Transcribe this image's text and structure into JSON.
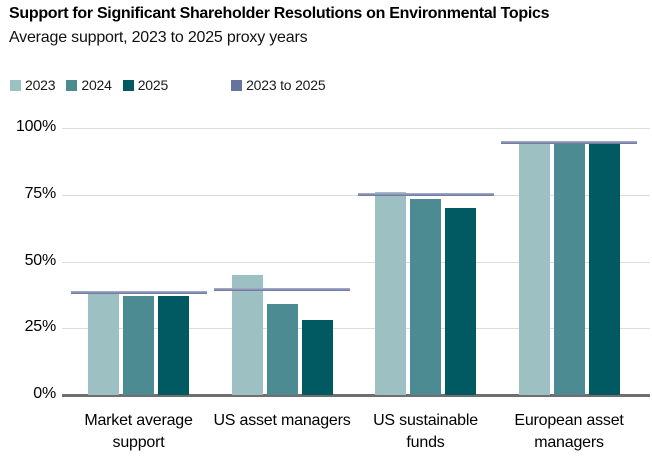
{
  "title": "Support for Significant Shareholder Resolutions on Environmental Topics",
  "subtitle": "Average support, 2023 to 2025 proxy years",
  "colors": {
    "series_2023": "#9dc1c2",
    "series_2024": "#4c8b91",
    "series_2025": "#015a61",
    "avg_line": "#7480a6",
    "legend_avg_swatch": "#67739e",
    "gridline": "#dcdcdc",
    "baseline": "#6f6f6f",
    "text": "#000000",
    "background": "#ffffff"
  },
  "legend": {
    "items": [
      {
        "label": "2023",
        "color": "#9dc1c2",
        "gap_before": false
      },
      {
        "label": "2024",
        "color": "#4c8b91",
        "gap_before": false
      },
      {
        "label": "2025",
        "color": "#015a61",
        "gap_before": false
      },
      {
        "label": "2023 to 2025",
        "color": "#67739e",
        "gap_before": true
      }
    ]
  },
  "chart_data": {
    "type": "bar",
    "title": "Support for Significant Shareholder Resolutions on Environmental Topics",
    "subtitle": "Average support, 2023 to 2025 proxy years",
    "categories": [
      "Market average support",
      "US asset managers",
      "US sustainable funds",
      "European asset managers"
    ],
    "category_label_lines": [
      [
        "Market average",
        "support"
      ],
      [
        "US asset managers"
      ],
      [
        "US sustainable",
        "funds"
      ],
      [
        "European asset",
        "managers"
      ]
    ],
    "series": [
      {
        "name": "2023",
        "color": "#9dc1c2",
        "values": [
          39,
          45,
          76,
          94
        ]
      },
      {
        "name": "2024",
        "color": "#4c8b91",
        "values": [
          37,
          34,
          73.5,
          95
        ]
      },
      {
        "name": "2025",
        "color": "#015a61",
        "values": [
          37,
          28,
          70,
          94
        ]
      }
    ],
    "overlay_line_series": {
      "name": "2023 to 2025",
      "color": "#7480a6",
      "values": [
        38.5,
        39.5,
        75,
        94.5
      ]
    },
    "yticks": [
      {
        "value": 0,
        "label": "0%"
      },
      {
        "value": 25,
        "label": "25%"
      },
      {
        "value": 50,
        "label": "50%"
      },
      {
        "value": 75,
        "label": "75%"
      },
      {
        "value": 100,
        "label": "100%"
      }
    ],
    "ylim": [
      0,
      100
    ],
    "xlabel": "",
    "ylabel": "",
    "grid": true,
    "legend_position": "top-left"
  }
}
